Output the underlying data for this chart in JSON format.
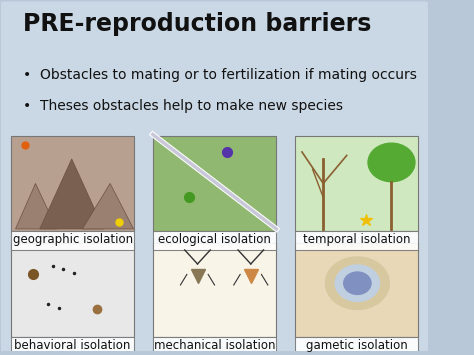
{
  "title": "PRE-reproduction barriers",
  "bullet1": "Obstacles to mating or to fertilization if mating occurs",
  "bullet2": "Theses obstacles help to make new species",
  "bg_color": "#b8c8d8",
  "title_color": "#111111",
  "text_color": "#111111",
  "label_color": "#111111",
  "labels": [
    "geographic isolation",
    "ecological isolation",
    "temporal isolation",
    "behavioral isolation",
    "mechanical isolation",
    "gametic isolation"
  ],
  "img_colors": [
    "#b8a090",
    "#90b870",
    "#d0e8c0",
    "#e8e8e8",
    "#f8f4e8",
    "#e8d8b8"
  ],
  "label_fontsize": 8.5,
  "title_fontsize": 17,
  "bullet_fontsize": 10.0
}
